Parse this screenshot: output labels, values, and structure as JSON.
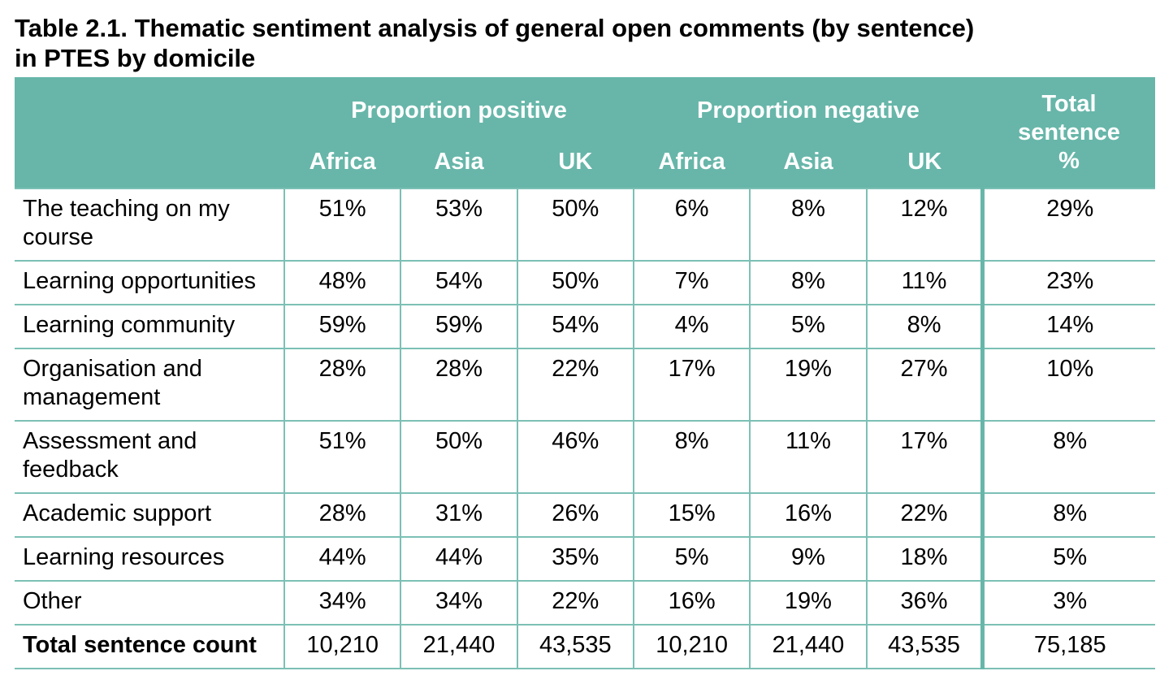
{
  "title": {
    "line1": "Table 2.1. Thematic sentiment analysis of general open comments (by sentence)",
    "line2": "in PTES by domicile"
  },
  "header": {
    "group_positive": "Proportion positive",
    "group_negative": "Proportion negative",
    "total_line1": "Total",
    "total_line2": "sentence",
    "total_line3": "%",
    "columns": [
      "Africa",
      "Asia",
      "UK",
      "Africa",
      "Asia",
      "UK"
    ]
  },
  "colors": {
    "header_bg": "#67b6a9",
    "grid": "#7cc0b5"
  },
  "rows": [
    {
      "label": "The teaching on my course",
      "values": [
        "51%",
        "53%",
        "50%",
        "6%",
        "8%",
        "12%",
        "29%"
      ],
      "tall": true
    },
    {
      "label": "Learning opportunities",
      "values": [
        "48%",
        "54%",
        "50%",
        "7%",
        "8%",
        "11%",
        "23%"
      ]
    },
    {
      "label": "Learning community",
      "values": [
        "59%",
        "59%",
        "54%",
        "4%",
        "5%",
        "8%",
        "14%"
      ]
    },
    {
      "label": "Organisation and management",
      "values": [
        "28%",
        "28%",
        "22%",
        "17%",
        "19%",
        "27%",
        "10%"
      ],
      "tall": true
    },
    {
      "label": "Assessment and feedback",
      "values": [
        "51%",
        "50%",
        "46%",
        "8%",
        "11%",
        "17%",
        "8%"
      ],
      "tall": true
    },
    {
      "label": "Academic support",
      "values": [
        "28%",
        "31%",
        "26%",
        "15%",
        "16%",
        "22%",
        "8%"
      ]
    },
    {
      "label": "Learning resources",
      "values": [
        "44%",
        "44%",
        "35%",
        "5%",
        "9%",
        "18%",
        "5%"
      ]
    },
    {
      "label": "Other",
      "values": [
        "34%",
        "34%",
        "22%",
        "16%",
        "19%",
        "36%",
        "3%"
      ]
    },
    {
      "label": "Total sentence count",
      "values": [
        "10,210",
        "21,440",
        "43,535",
        "10,210",
        "21,440",
        "43,535",
        "75,185"
      ],
      "total": true
    }
  ]
}
